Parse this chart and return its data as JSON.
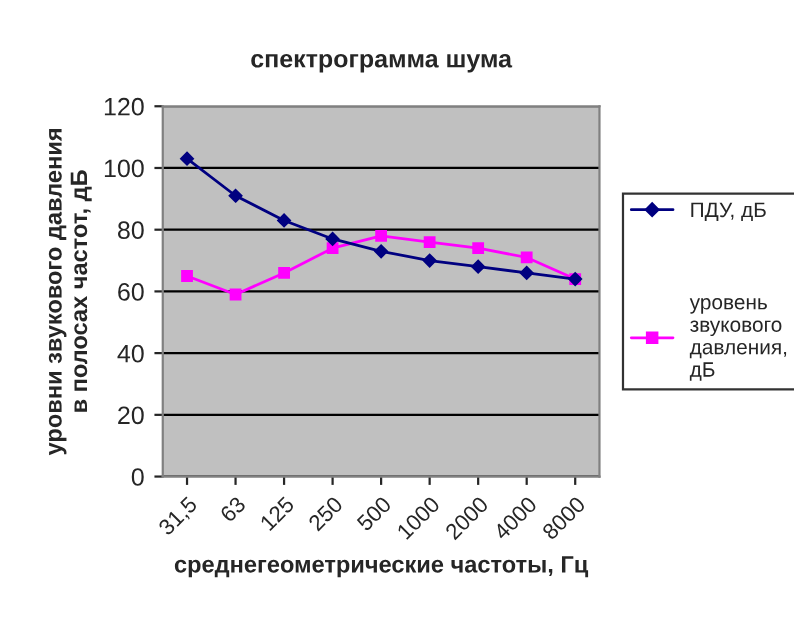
{
  "chart_data": {
    "type": "line",
    "title": "спектрограмма шума",
    "xlabel": "среднегеометрические частоты, Гц",
    "ylabel": "уровни звукового давления в полосах частот, дБ",
    "categories": [
      "31,5",
      "63",
      "125",
      "250",
      "500",
      "1000",
      "2000",
      "4000",
      "8000"
    ],
    "series": [
      {
        "name": "ПДУ, дБ",
        "color": "#000080",
        "marker": "diamond",
        "values": [
          103,
          91,
          83,
          77,
          73,
          70,
          68,
          66,
          64
        ]
      },
      {
        "name": "уровень звукового давления, дБ",
        "color": "#ff00ff",
        "marker": "square",
        "values": [
          65,
          59,
          66,
          74,
          78,
          76,
          74,
          71,
          64
        ]
      }
    ],
    "ylim": [
      0,
      120
    ],
    "yticks": [
      0,
      20,
      40,
      60,
      80,
      100,
      120
    ],
    "grid": "y",
    "legend": "right"
  }
}
